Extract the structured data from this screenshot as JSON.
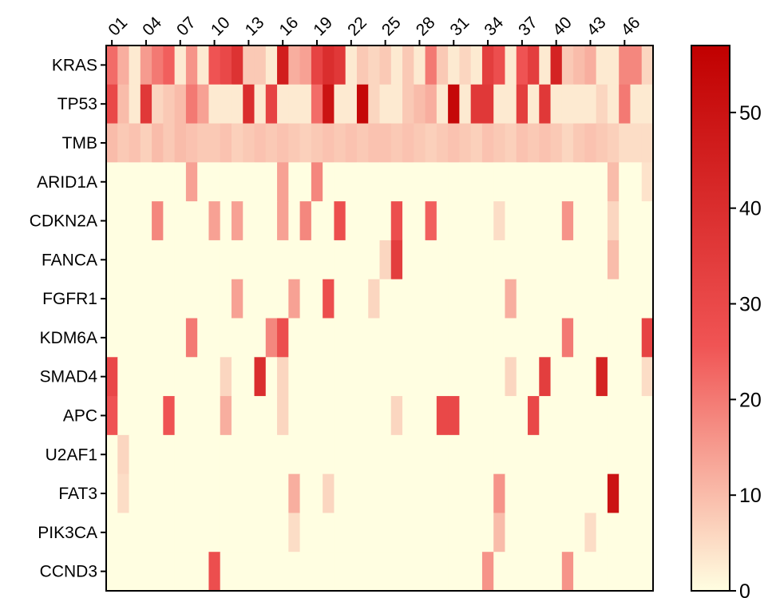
{
  "chart_data": {
    "type": "heatmap",
    "x_tick_labels": [
      "01",
      "04",
      "07",
      "10",
      "13",
      "16",
      "19",
      "22",
      "25",
      "28",
      "31",
      "34",
      "37",
      "40",
      "43",
      "46"
    ],
    "columns": 48,
    "rows": [
      "KRAS",
      "TP53",
      "TMB",
      "ARID1A",
      "CDKN2A",
      "FANCA",
      "FGFR1",
      "KDM6A",
      "SMAD4",
      "APC",
      "U2AF1",
      "FAT3",
      "PIK3CA",
      "CCND3"
    ],
    "colorbar": {
      "min": 0,
      "max": 57,
      "ticks": [
        0,
        10,
        20,
        30,
        40,
        50
      ]
    },
    "colors": {
      "low": "#FFFEE1",
      "mid": "#F05454",
      "high": "#C00000"
    },
    "values": [
      [
        22,
        12,
        3,
        15,
        20,
        24,
        3,
        16,
        3,
        26,
        30,
        38,
        8,
        8,
        3,
        46,
        12,
        14,
        32,
        40,
        36,
        3,
        8,
        6,
        8,
        3,
        8,
        3,
        20,
        8,
        3,
        6,
        3,
        34,
        28,
        3,
        26,
        34,
        3,
        44,
        8,
        10,
        12,
        3,
        3,
        18,
        18,
        6
      ],
      [
        30,
        10,
        3,
        36,
        6,
        8,
        10,
        20,
        14,
        3,
        3,
        3,
        40,
        3,
        32,
        3,
        3,
        3,
        22,
        50,
        3,
        3,
        54,
        6,
        3,
        3,
        8,
        10,
        12,
        3,
        54,
        3,
        36,
        36,
        3,
        3,
        34,
        3,
        36,
        3,
        3,
        3,
        3,
        6,
        3,
        20,
        3,
        3
      ],
      [
        10,
        8,
        9,
        7,
        10,
        8,
        10,
        9,
        8,
        8,
        9,
        7,
        8,
        9,
        8,
        9,
        8,
        7,
        8,
        9,
        8,
        9,
        8,
        9,
        9,
        8,
        9,
        8,
        7,
        8,
        9,
        8,
        7,
        9,
        8,
        7,
        9,
        8,
        9,
        8,
        6,
        8,
        9,
        8,
        7,
        5,
        5,
        5
      ],
      [
        0,
        0,
        0,
        0,
        0,
        0,
        0,
        14,
        0,
        0,
        0,
        0,
        0,
        0,
        0,
        14,
        0,
        0,
        18,
        0,
        0,
        0,
        0,
        0,
        0,
        0,
        0,
        0,
        0,
        0,
        0,
        0,
        0,
        0,
        0,
        0,
        0,
        0,
        0,
        0,
        0,
        0,
        0,
        0,
        10,
        0,
        0,
        4
      ],
      [
        0,
        0,
        0,
        0,
        18,
        0,
        0,
        0,
        0,
        14,
        0,
        14,
        0,
        0,
        0,
        14,
        0,
        18,
        0,
        0,
        28,
        0,
        0,
        0,
        0,
        28,
        0,
        0,
        24,
        0,
        0,
        0,
        0,
        0,
        5,
        0,
        0,
        0,
        0,
        0,
        16,
        0,
        0,
        0,
        6,
        0,
        0,
        0
      ],
      [
        0,
        0,
        0,
        0,
        0,
        0,
        0,
        0,
        0,
        0,
        0,
        0,
        0,
        0,
        0,
        0,
        0,
        0,
        0,
        0,
        0,
        0,
        0,
        0,
        6,
        34,
        0,
        0,
        0,
        0,
        0,
        0,
        0,
        0,
        0,
        0,
        0,
        0,
        0,
        0,
        0,
        0,
        0,
        0,
        10,
        0,
        0,
        0
      ],
      [
        0,
        0,
        0,
        0,
        0,
        0,
        0,
        0,
        0,
        0,
        0,
        14,
        0,
        0,
        0,
        0,
        14,
        0,
        0,
        28,
        0,
        0,
        0,
        6,
        0,
        0,
        0,
        0,
        0,
        0,
        0,
        0,
        0,
        0,
        0,
        12,
        0,
        0,
        0,
        0,
        0,
        0,
        0,
        0,
        0,
        0,
        0,
        0
      ],
      [
        0,
        0,
        0,
        0,
        0,
        0,
        0,
        20,
        0,
        0,
        0,
        0,
        0,
        0,
        18,
        28,
        0,
        0,
        0,
        0,
        0,
        0,
        0,
        0,
        0,
        0,
        0,
        0,
        0,
        0,
        0,
        0,
        0,
        0,
        0,
        0,
        0,
        0,
        0,
        0,
        20,
        0,
        0,
        0,
        0,
        0,
        0,
        32
      ],
      [
        30,
        0,
        0,
        0,
        0,
        0,
        0,
        0,
        0,
        0,
        6,
        0,
        0,
        40,
        0,
        6,
        0,
        0,
        0,
        0,
        0,
        0,
        0,
        0,
        0,
        0,
        0,
        0,
        0,
        0,
        0,
        0,
        0,
        0,
        0,
        6,
        0,
        0,
        34,
        0,
        0,
        0,
        0,
        44,
        0,
        0,
        0,
        5
      ],
      [
        26,
        0,
        0,
        0,
        0,
        26,
        0,
        0,
        0,
        0,
        12,
        0,
        0,
        0,
        0,
        6,
        0,
        0,
        0,
        0,
        0,
        0,
        0,
        0,
        0,
        6,
        0,
        0,
        0,
        30,
        30,
        0,
        0,
        0,
        0,
        0,
        0,
        30,
        0,
        0,
        0,
        0,
        0,
        0,
        0,
        0,
        0,
        0
      ],
      [
        0,
        6,
        0,
        0,
        0,
        0,
        0,
        0,
        0,
        0,
        0,
        0,
        0,
        0,
        0,
        0,
        0,
        0,
        0,
        0,
        0,
        0,
        0,
        0,
        0,
        0,
        0,
        0,
        0,
        0,
        0,
        0,
        0,
        0,
        0,
        0,
        0,
        0,
        0,
        0,
        0,
        0,
        0,
        0,
        0,
        0,
        0,
        0
      ],
      [
        0,
        5,
        0,
        0,
        0,
        0,
        0,
        0,
        0,
        0,
        0,
        0,
        0,
        0,
        0,
        0,
        12,
        0,
        0,
        6,
        0,
        0,
        0,
        0,
        0,
        0,
        0,
        0,
        0,
        0,
        0,
        0,
        0,
        0,
        16,
        0,
        0,
        0,
        0,
        0,
        0,
        0,
        0,
        0,
        50,
        0,
        0,
        0
      ],
      [
        0,
        0,
        0,
        0,
        0,
        0,
        0,
        0,
        0,
        0,
        0,
        0,
        0,
        0,
        0,
        0,
        5,
        0,
        0,
        0,
        0,
        0,
        0,
        0,
        0,
        0,
        0,
        0,
        0,
        0,
        0,
        0,
        0,
        0,
        10,
        0,
        0,
        0,
        0,
        0,
        0,
        0,
        5,
        0,
        0,
        0,
        0,
        0
      ],
      [
        0,
        0,
        0,
        0,
        0,
        0,
        0,
        0,
        0,
        28,
        0,
        0,
        0,
        0,
        0,
        0,
        0,
        0,
        0,
        0,
        0,
        0,
        0,
        0,
        0,
        0,
        0,
        0,
        0,
        0,
        0,
        0,
        0,
        16,
        0,
        0,
        0,
        0,
        0,
        0,
        16,
        0,
        0,
        0,
        0,
        0,
        0,
        0
      ]
    ]
  }
}
